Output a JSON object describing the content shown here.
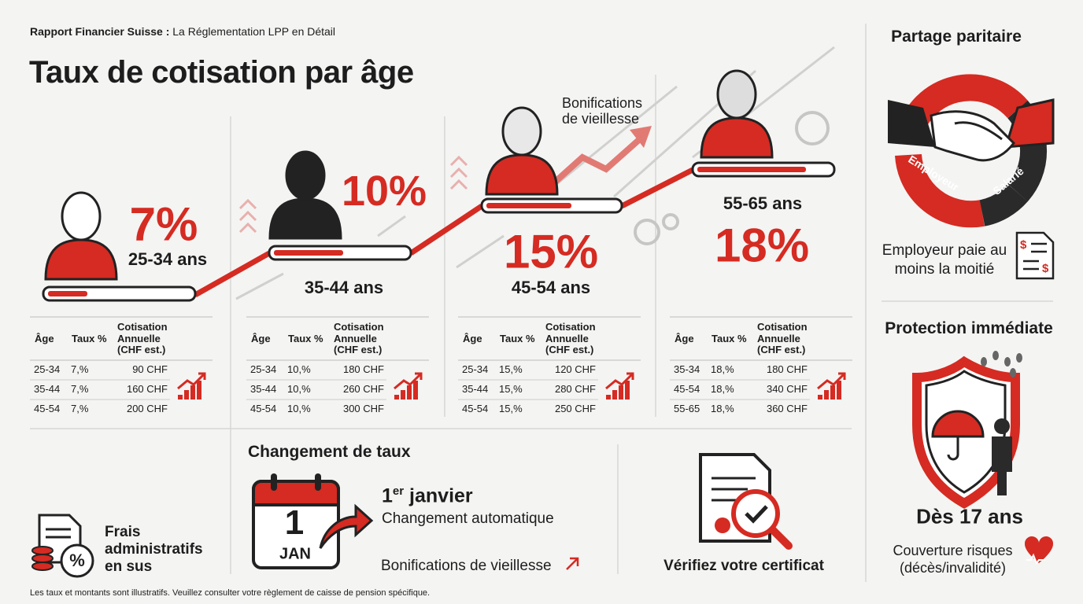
{
  "header": {
    "kicker": "Rapport Financier Suisse :",
    "subtitle": "La Réglementation LPP en Détail",
    "title": "Taux de cotisation par âge"
  },
  "annotation": "Bonifications de vieillesse",
  "stages": [
    {
      "rate": "7%",
      "age": "25-34 ans",
      "table": {
        "columns": [
          "Âge",
          "Taux %",
          "Cotisation Annuelle (CHF est.)"
        ],
        "rows": [
          [
            "25-34",
            "7,%",
            "90 CHF"
          ],
          [
            "35-44",
            "7,%",
            "160 CHF"
          ],
          [
            "45-54",
            "7,%",
            "200 CHF"
          ]
        ]
      }
    },
    {
      "rate": "10%",
      "age": "35-44 ans",
      "table": {
        "columns": [
          "Âge",
          "Taux %",
          "Cotisation Annuelle (CHF est.)"
        ],
        "rows": [
          [
            "25-34",
            "10,%",
            "180 CHF"
          ],
          [
            "35-44",
            "10,%",
            "260 CHF"
          ],
          [
            "45-54",
            "10,%",
            "300 CHF"
          ]
        ]
      }
    },
    {
      "rate": "15%",
      "age": "45-54 ans",
      "table": {
        "columns": [
          "Âge",
          "Taux %",
          "Cotisation Annuelle (CHF est.)"
        ],
        "rows": [
          [
            "25-34",
            "15,%",
            "120 CHF"
          ],
          [
            "35-44",
            "15,%",
            "280 CHF"
          ],
          [
            "45-54",
            "15,%",
            "250 CHF"
          ]
        ]
      }
    },
    {
      "rate": "18%",
      "age": "55-65 ans",
      "table": {
        "columns": [
          "Âge",
          "Taux %",
          "Cotisation Annuelle (CHF est.)"
        ],
        "rows": [
          [
            "35-34",
            "18,%",
            "180 CHF"
          ],
          [
            "45-54",
            "18,%",
            "340 CHF"
          ],
          [
            "55-65",
            "18,%",
            "360 CHF"
          ]
        ]
      }
    }
  ],
  "fees": "Frais administratifs en sus",
  "rate_change": {
    "title": "Changement de taux",
    "calendar_day": "1",
    "calendar_month": "JAN",
    "date_day": "1",
    "date_suffix": "er",
    "date_month": "janvier",
    "note": "Changement automatique",
    "link": "Bonifications de vieillesse"
  },
  "certificate": "Vérifiez votre certificat",
  "sidebar": {
    "split": {
      "title": "Partage paritaire",
      "employer": "Employeur",
      "employee": "Salarié",
      "note": "Employeur paie au moins la moitié"
    },
    "protection": {
      "title": "Protection immédiate",
      "age": "Dès 17 ans",
      "note": "Couverture risques (décès/invalidité)"
    }
  },
  "footnote": "Les taux et montants sont illustratifs. Veuillez consulter votre règlement de caisse de pension spécifique."
}
